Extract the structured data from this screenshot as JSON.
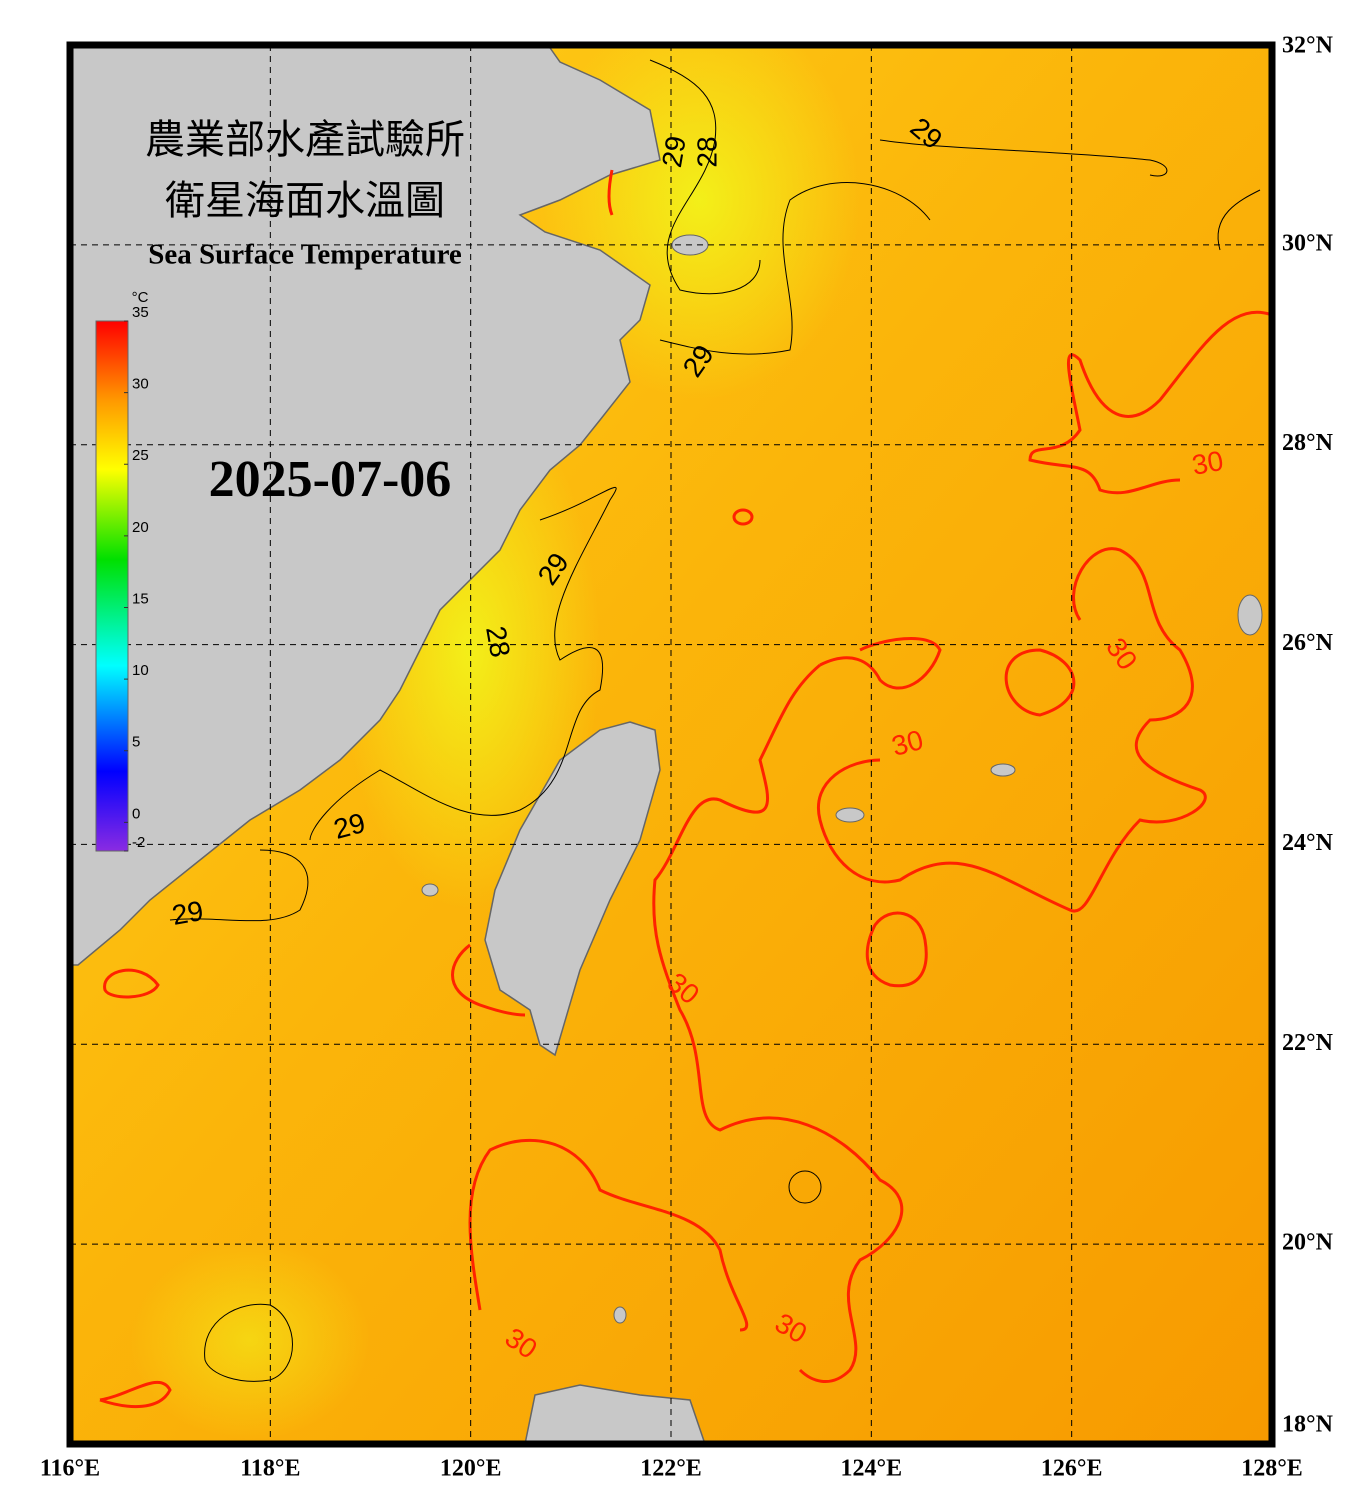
{
  "header": {
    "title_zh_1": "農業部水產試驗所",
    "title_zh_2": "衛星海面水溫圖",
    "title_en": "Sea Surface Temperature",
    "date": "2025-07-06"
  },
  "map": {
    "xlim": [
      116,
      128
    ],
    "ylim": [
      18,
      32
    ],
    "xticks": [
      {
        "value": 116,
        "label": "116°E"
      },
      {
        "value": 118,
        "label": "118°E"
      },
      {
        "value": 120,
        "label": "120°E"
      },
      {
        "value": 122,
        "label": "122°E"
      },
      {
        "value": 124,
        "label": "124°E"
      },
      {
        "value": 126,
        "label": "126°E"
      },
      {
        "value": 128,
        "label": "128°E"
      }
    ],
    "yticks": [
      {
        "value": 18,
        "label": "18°N"
      },
      {
        "value": 20,
        "label": "20°N"
      },
      {
        "value": 22,
        "label": "22°N"
      },
      {
        "value": 24,
        "label": "24°N"
      },
      {
        "value": 26,
        "label": "26°N"
      },
      {
        "value": 28,
        "label": "28°N"
      },
      {
        "value": 30,
        "label": "30°N"
      },
      {
        "value": 32,
        "label": "32°N"
      }
    ],
    "grid": true
  },
  "colorbar": {
    "unit": "°C",
    "lim": [
      -2,
      35
    ],
    "ticks": [
      -2,
      0,
      5,
      10,
      15,
      20,
      25,
      30,
      35
    ]
  },
  "contour_labels": [
    29,
    28,
    29,
    29,
    29,
    28,
    29,
    29,
    30,
    30,
    30,
    30,
    30,
    30
  ]
}
